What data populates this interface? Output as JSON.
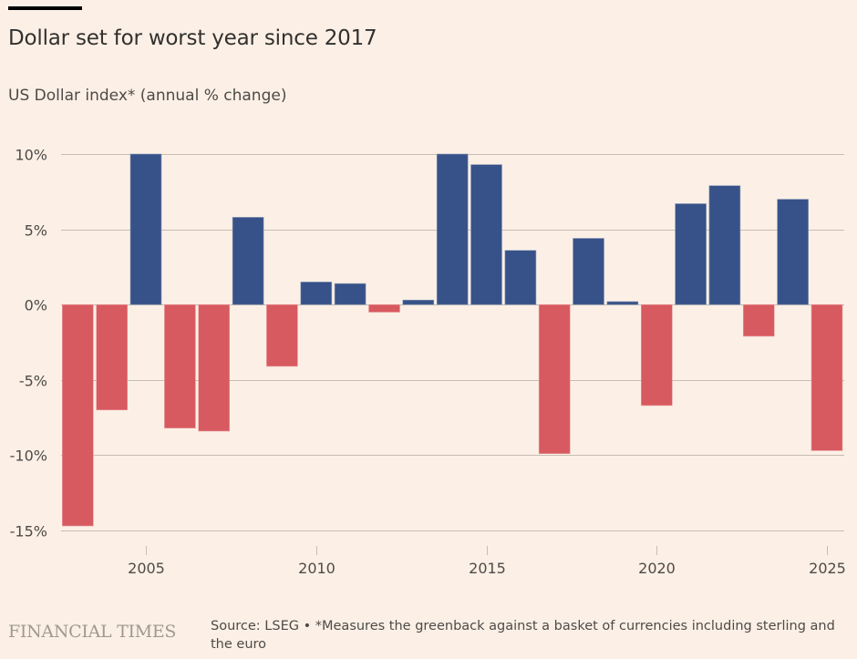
{
  "header": {
    "title": "Dollar set for worst year since 2017",
    "subtitle": "US Dollar index* (annual % change)"
  },
  "footer": {
    "brand": "FINANCIAL TIMES",
    "source": "Source: LSEG • *Measures the greenback against a basket of currencies including sterling and the euro"
  },
  "colors": {
    "positive": "#375288",
    "negative": "#d75a60",
    "gridline": "#c8bdb3",
    "background": "#fcf0e6"
  },
  "chart_data": {
    "type": "bar",
    "title": "Dollar set for worst year since 2017",
    "subtitle": "US Dollar index* (annual % change)",
    "xlabel": "",
    "ylabel": "",
    "categories": [
      2003,
      2004,
      2005,
      2006,
      2007,
      2008,
      2009,
      2010,
      2011,
      2012,
      2013,
      2014,
      2015,
      2016,
      2017,
      2018,
      2019,
      2020,
      2021,
      2022,
      2023,
      2024,
      2025
    ],
    "values": [
      -14.7,
      -7.0,
      10.0,
      -8.2,
      -8.4,
      5.8,
      -4.1,
      1.5,
      1.4,
      -0.5,
      0.3,
      10.0,
      9.3,
      3.6,
      -9.9,
      4.4,
      0.2,
      -6.7,
      6.7,
      7.9,
      -2.1,
      7.0,
      -9.7
    ],
    "ylim": [
      -15,
      10
    ],
    "yticks": [
      10,
      5,
      0,
      -5,
      -10,
      -15
    ],
    "ytick_labels": [
      "10%",
      "5%",
      "0%",
      "-5%",
      "-10%",
      "-15%"
    ],
    "xticks": [
      2005,
      2010,
      2015,
      2020,
      2025
    ],
    "xtick_labels": [
      "2005",
      "2010",
      "2015",
      "2020",
      "2025"
    ],
    "grid": true,
    "legend": "none"
  }
}
